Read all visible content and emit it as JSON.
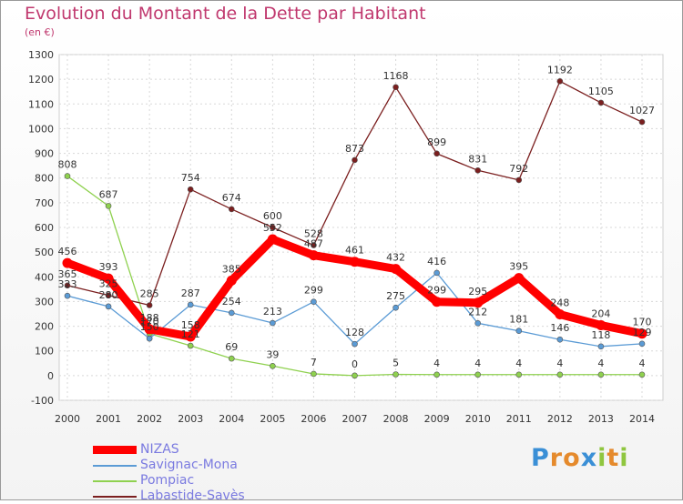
{
  "header": {
    "title": "Evolution du Montant de la Dette par Habitant",
    "subtitle": "(en €)"
  },
  "logo": {
    "letters": [
      "P",
      "r",
      "o",
      "x",
      "i",
      "t",
      "i"
    ],
    "colors": [
      "#3a8fd6",
      "#e58a2c",
      "#e58a2c",
      "#3a8fd6",
      "#8fc63f",
      "#e58a2c",
      "#8fc63f"
    ]
  },
  "chart_data": {
    "type": "line",
    "title": "Evolution du Montant de la Dette par Habitant",
    "ylabel": "(en €)",
    "x": [
      "2000",
      "2001",
      "2002",
      "2003",
      "2004",
      "2005",
      "2006",
      "2007",
      "2008",
      "2009",
      "2010",
      "2011",
      "2012",
      "2013",
      "2014"
    ],
    "ylim": [
      -100,
      1300
    ],
    "yticks": [
      -100,
      0,
      100,
      200,
      300,
      400,
      500,
      600,
      700,
      800,
      900,
      1000,
      1100,
      1200,
      1300
    ],
    "grid": true,
    "legend_position": "bottom-left",
    "series": [
      {
        "name": "NIZAS",
        "color": "#ff0000",
        "values": [
          456,
          393,
          188,
          158,
          385,
          552,
          487,
          461,
          432,
          299,
          295,
          395,
          248,
          204,
          170
        ],
        "labels": [
          "456",
          "393",
          "188",
          "158",
          "385",
          "552",
          "487",
          "461",
          "432",
          "299",
          "295",
          "395",
          "248",
          "204",
          "170"
        ]
      },
      {
        "name": "Savignac-Mona",
        "color": "#5b9bd5",
        "values": [
          323,
          280,
          150,
          287,
          254,
          213,
          299,
          128,
          275,
          416,
          212,
          181,
          146,
          118,
          129
        ],
        "labels": [
          "323",
          "280",
          "150",
          "287",
          "254",
          "213",
          "299",
          "128",
          "275",
          "416",
          "212",
          "181",
          "146",
          "118",
          "129"
        ]
      },
      {
        "name": "Pompiac",
        "color": "#8fd14f",
        "values": [
          808,
          687,
          170,
          121,
          69,
          39,
          7,
          0,
          5,
          4,
          4,
          4,
          4,
          4,
          4
        ],
        "labels": [
          "808",
          "687",
          "170",
          "121",
          "69",
          "39",
          "7",
          "0",
          "5",
          "4",
          "4",
          "4",
          "4",
          "4",
          "4"
        ]
      },
      {
        "name": "Labastide-Savès",
        "color": "#7b1f1f",
        "values": [
          365,
          325,
          285,
          754,
          674,
          600,
          528,
          873,
          1168,
          899,
          831,
          792,
          1192,
          1105,
          1027
        ],
        "labels": [
          "365",
          "325",
          "285",
          "754",
          "674",
          "600",
          "528",
          "873",
          "1168",
          "899",
          "831",
          "792",
          "1192",
          "1105",
          "1027"
        ]
      }
    ]
  }
}
